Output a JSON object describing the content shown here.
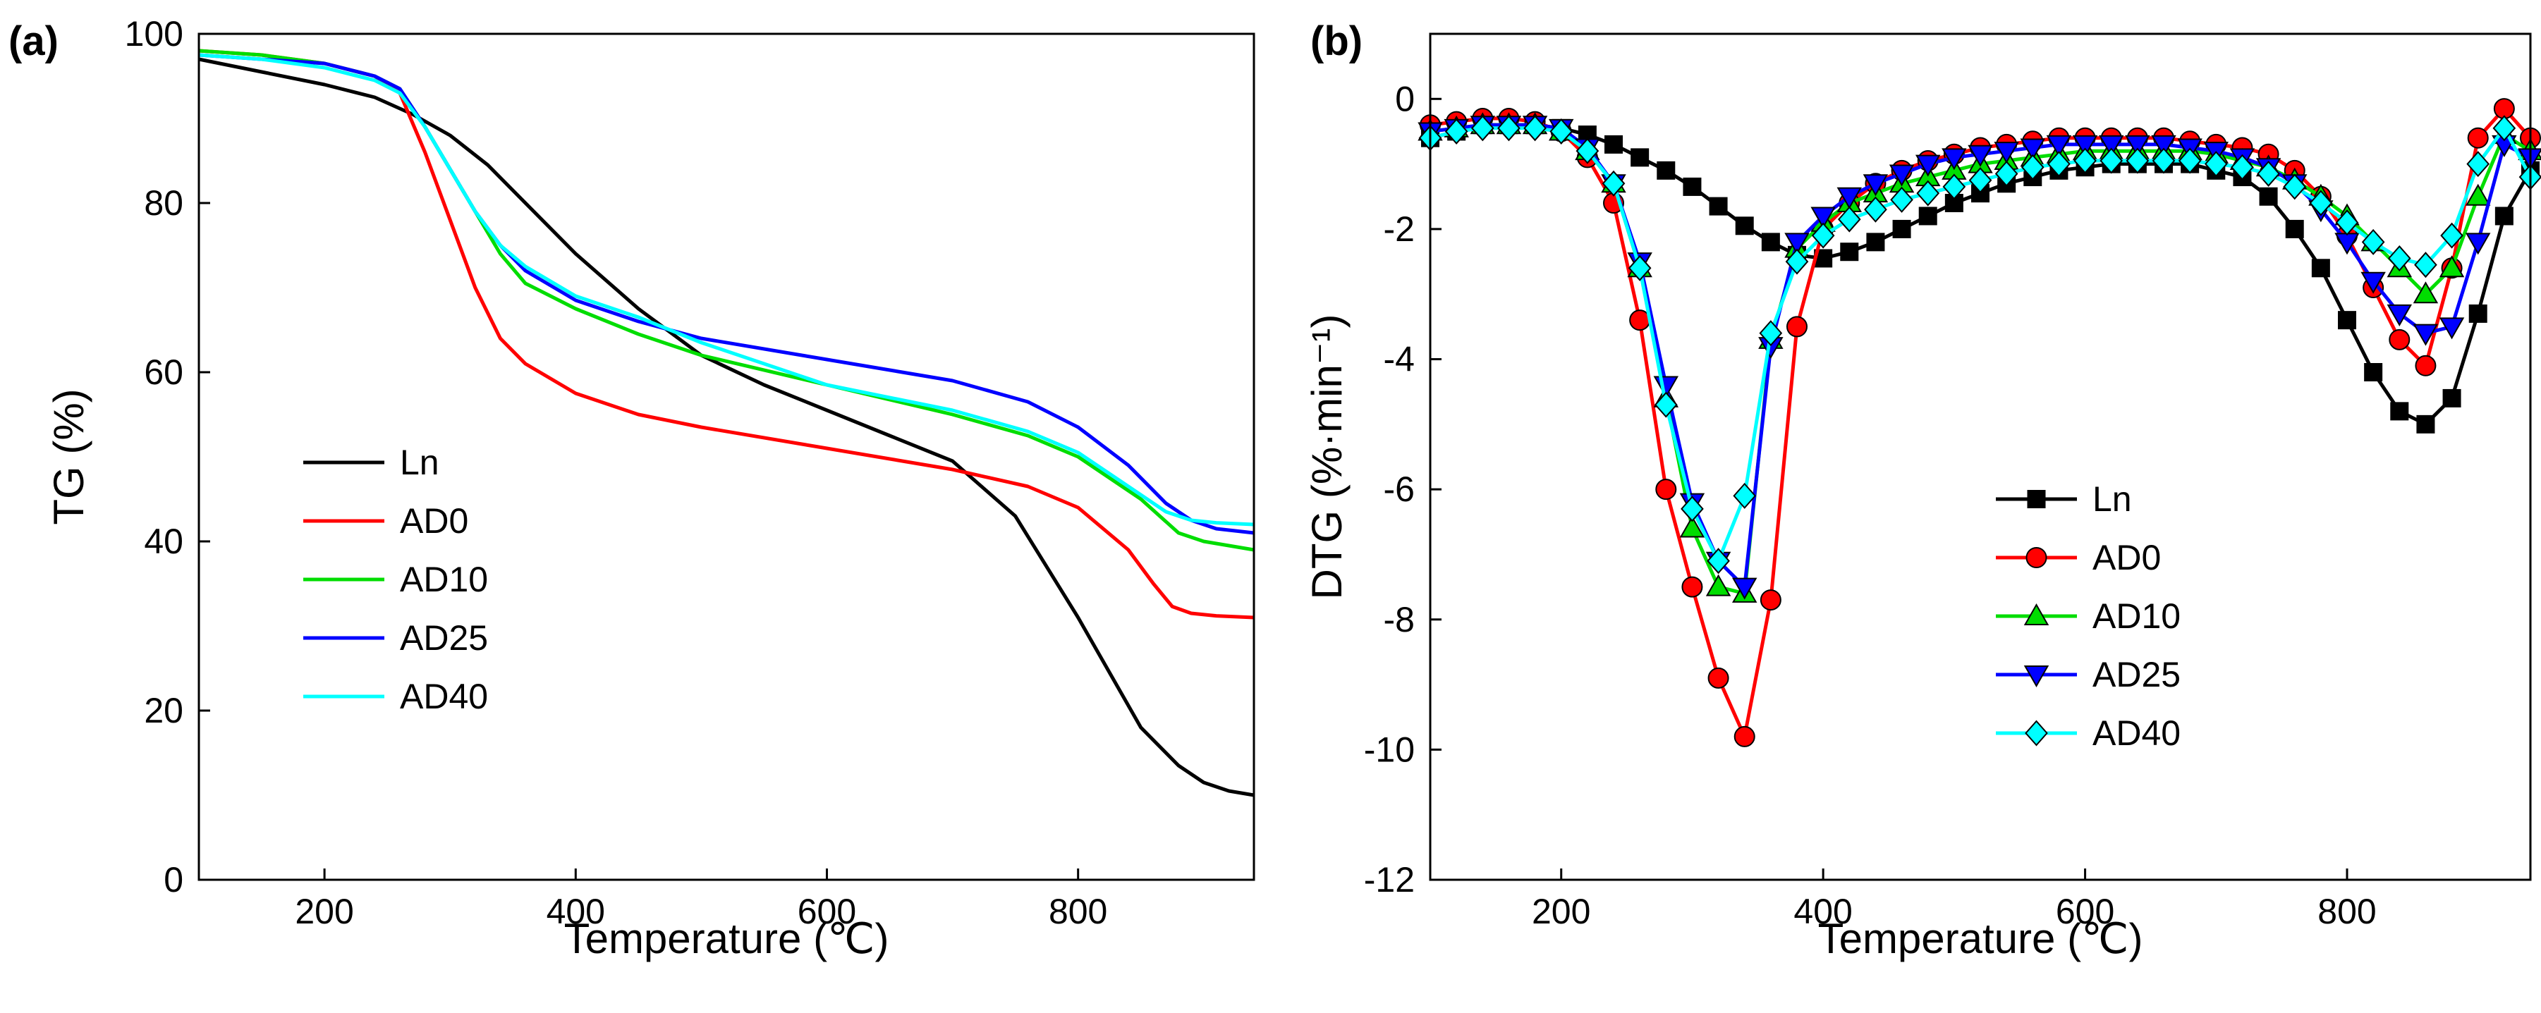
{
  "chart_data": [
    {
      "panel_label": "(a)",
      "type": "line",
      "xlabel": "Temperature (℃)",
      "ylabel": "TG (%)",
      "xlim": [
        100,
        940
      ],
      "ylim": [
        0,
        100
      ],
      "xticks": [
        200,
        400,
        600,
        800
      ],
      "yticks": [
        0,
        20,
        40,
        60,
        80,
        100
      ],
      "legend_position": "lower-left",
      "series": [
        {
          "name": "Ln",
          "color": "#000000",
          "x": [
            100,
            150,
            200,
            240,
            270,
            300,
            330,
            360,
            400,
            450,
            500,
            550,
            600,
            650,
            700,
            750,
            800,
            850,
            880,
            900,
            920,
            940
          ],
          "y": [
            97,
            95.5,
            94,
            92.5,
            90.5,
            88,
            84.5,
            80,
            74,
            67.5,
            62,
            58.5,
            55.5,
            52.5,
            49.5,
            43,
            31,
            18,
            13.5,
            11.5,
            10.5,
            10
          ]
        },
        {
          "name": "AD0",
          "color": "#ff0000",
          "x": [
            100,
            150,
            200,
            240,
            260,
            280,
            300,
            320,
            340,
            350,
            360,
            400,
            450,
            500,
            600,
            700,
            760,
            800,
            840,
            860,
            875,
            890,
            910,
            940
          ],
          "y": [
            98,
            97.5,
            96.5,
            95,
            93,
            86,
            78,
            70,
            64,
            62.5,
            61,
            57.5,
            55,
            53.5,
            51,
            48.5,
            46.5,
            44,
            39,
            35,
            32.3,
            31.5,
            31.2,
            31
          ]
        },
        {
          "name": "AD10",
          "color": "#00dd00",
          "x": [
            100,
            150,
            200,
            240,
            260,
            280,
            300,
            320,
            340,
            360,
            400,
            450,
            500,
            600,
            700,
            760,
            800,
            850,
            880,
            900,
            940
          ],
          "y": [
            98,
            97.5,
            96.5,
            95,
            93.5,
            89,
            84,
            79,
            74,
            70.5,
            67.5,
            64.5,
            62,
            58.5,
            55,
            52.5,
            50,
            45,
            41,
            40,
            39
          ]
        },
        {
          "name": "AD25",
          "color": "#0000ff",
          "x": [
            100,
            150,
            200,
            240,
            260,
            280,
            300,
            320,
            340,
            360,
            400,
            450,
            500,
            600,
            700,
            760,
            800,
            840,
            870,
            890,
            910,
            940
          ],
          "y": [
            97.5,
            97,
            96.5,
            95,
            93.5,
            89,
            84,
            79,
            75,
            72,
            68.5,
            66,
            64,
            61.5,
            59,
            56.5,
            53.5,
            49,
            44.5,
            42.5,
            41.5,
            41
          ]
        },
        {
          "name": "AD40",
          "color": "#00ffff",
          "x": [
            100,
            150,
            200,
            240,
            260,
            280,
            300,
            320,
            340,
            360,
            400,
            450,
            500,
            600,
            700,
            760,
            800,
            840,
            870,
            890,
            910,
            940
          ],
          "y": [
            97.5,
            97,
            96,
            94.5,
            93,
            89,
            84,
            79,
            75,
            72.5,
            69,
            66.5,
            63.5,
            58.5,
            55.5,
            53,
            50.5,
            46.5,
            43.5,
            42.5,
            42.2,
            42
          ]
        }
      ]
    },
    {
      "panel_label": "(b)",
      "type": "line",
      "xlabel": "Temperature (℃)",
      "ylabel": "DTG (%·min⁻¹)",
      "xlim": [
        100,
        940
      ],
      "ylim": [
        -12,
        1
      ],
      "xticks": [
        200,
        400,
        600,
        800
      ],
      "yticks": [
        0,
        -2,
        -4,
        -6,
        -8,
        -10,
        -12
      ],
      "legend_position": "lower-center",
      "series": [
        {
          "name": "Ln",
          "color": "#000000",
          "marker": "square",
          "x": [
            100,
            120,
            140,
            160,
            180,
            200,
            220,
            240,
            260,
            280,
            300,
            320,
            340,
            360,
            380,
            400,
            420,
            440,
            460,
            480,
            500,
            520,
            540,
            560,
            580,
            600,
            620,
            640,
            660,
            680,
            700,
            720,
            740,
            760,
            780,
            800,
            820,
            840,
            860,
            880,
            900,
            920,
            940
          ],
          "y": [
            -0.6,
            -0.5,
            -0.4,
            -0.4,
            -0.4,
            -0.45,
            -0.55,
            -0.7,
            -0.9,
            -1.1,
            -1.35,
            -1.65,
            -1.95,
            -2.2,
            -2.4,
            -2.45,
            -2.35,
            -2.2,
            -2.0,
            -1.8,
            -1.6,
            -1.45,
            -1.3,
            -1.2,
            -1.1,
            -1.05,
            -1.0,
            -1.0,
            -1.0,
            -1.0,
            -1.1,
            -1.2,
            -1.5,
            -2.0,
            -2.6,
            -3.4,
            -4.2,
            -4.8,
            -5.0,
            -4.6,
            -3.3,
            -1.8,
            -1.1
          ]
        },
        {
          "name": "AD0",
          "color": "#ff0000",
          "marker": "circle",
          "x": [
            100,
            120,
            140,
            160,
            180,
            200,
            220,
            240,
            260,
            280,
            300,
            320,
            340,
            360,
            380,
            400,
            420,
            440,
            460,
            480,
            500,
            520,
            540,
            560,
            580,
            600,
            620,
            640,
            660,
            680,
            700,
            720,
            740,
            760,
            780,
            800,
            820,
            840,
            860,
            880,
            900,
            920,
            940
          ],
          "y": [
            -0.4,
            -0.35,
            -0.3,
            -0.3,
            -0.35,
            -0.5,
            -0.9,
            -1.6,
            -3.4,
            -6.0,
            -7.5,
            -8.9,
            -9.8,
            -7.7,
            -3.5,
            -2.0,
            -1.6,
            -1.3,
            -1.1,
            -0.95,
            -0.85,
            -0.75,
            -0.7,
            -0.65,
            -0.6,
            -0.6,
            -0.6,
            -0.6,
            -0.6,
            -0.65,
            -0.7,
            -0.75,
            -0.85,
            -1.1,
            -1.5,
            -2.1,
            -2.9,
            -3.7,
            -4.1,
            -2.6,
            -0.6,
            -0.15,
            -0.6
          ]
        },
        {
          "name": "AD10",
          "color": "#00dd00",
          "marker": "triangle-up",
          "x": [
            100,
            120,
            140,
            160,
            180,
            200,
            220,
            240,
            260,
            280,
            300,
            320,
            340,
            360,
            380,
            400,
            420,
            440,
            460,
            480,
            500,
            520,
            540,
            560,
            580,
            600,
            620,
            640,
            660,
            680,
            700,
            720,
            740,
            760,
            780,
            800,
            820,
            840,
            860,
            880,
            900,
            920,
            940
          ],
          "y": [
            -0.5,
            -0.45,
            -0.4,
            -0.4,
            -0.4,
            -0.5,
            -0.8,
            -1.3,
            -2.6,
            -4.6,
            -6.6,
            -7.5,
            -7.6,
            -3.7,
            -2.3,
            -1.9,
            -1.6,
            -1.45,
            -1.3,
            -1.2,
            -1.1,
            -1.0,
            -0.95,
            -0.9,
            -0.85,
            -0.8,
            -0.8,
            -0.8,
            -0.8,
            -0.8,
            -0.85,
            -0.95,
            -1.05,
            -1.25,
            -1.5,
            -1.8,
            -2.2,
            -2.6,
            -3.0,
            -2.6,
            -1.5,
            -0.55,
            -0.8
          ]
        },
        {
          "name": "AD25",
          "color": "#0000ff",
          "marker": "triangle-down",
          "x": [
            100,
            120,
            140,
            160,
            180,
            200,
            220,
            240,
            260,
            280,
            300,
            320,
            340,
            360,
            380,
            400,
            420,
            440,
            460,
            480,
            500,
            520,
            540,
            560,
            580,
            600,
            620,
            640,
            660,
            680,
            700,
            720,
            740,
            760,
            780,
            800,
            820,
            840,
            860,
            880,
            900,
            920,
            940
          ],
          "y": [
            -0.5,
            -0.45,
            -0.4,
            -0.4,
            -0.4,
            -0.45,
            -0.75,
            -1.3,
            -2.5,
            -4.4,
            -6.2,
            -7.1,
            -7.5,
            -3.8,
            -2.2,
            -1.8,
            -1.5,
            -1.3,
            -1.15,
            -1.0,
            -0.9,
            -0.85,
            -0.8,
            -0.75,
            -0.7,
            -0.7,
            -0.7,
            -0.7,
            -0.7,
            -0.75,
            -0.8,
            -0.9,
            -1.05,
            -1.3,
            -1.7,
            -2.2,
            -2.8,
            -3.3,
            -3.6,
            -3.5,
            -2.2,
            -0.7,
            -0.9
          ]
        },
        {
          "name": "AD40",
          "color": "#00ffff",
          "marker": "diamond",
          "x": [
            100,
            120,
            140,
            160,
            180,
            200,
            220,
            240,
            260,
            280,
            300,
            320,
            340,
            360,
            380,
            400,
            420,
            440,
            460,
            480,
            500,
            520,
            540,
            560,
            580,
            600,
            620,
            640,
            660,
            680,
            700,
            720,
            740,
            760,
            780,
            800,
            820,
            840,
            860,
            880,
            900,
            920,
            940
          ],
          "y": [
            -0.6,
            -0.5,
            -0.45,
            -0.45,
            -0.45,
            -0.5,
            -0.8,
            -1.3,
            -2.6,
            -4.7,
            -6.3,
            -7.1,
            -6.1,
            -3.6,
            -2.5,
            -2.1,
            -1.85,
            -1.7,
            -1.55,
            -1.45,
            -1.35,
            -1.25,
            -1.15,
            -1.05,
            -1.0,
            -0.95,
            -0.95,
            -0.95,
            -0.95,
            -0.95,
            -1.0,
            -1.05,
            -1.15,
            -1.35,
            -1.6,
            -1.9,
            -2.2,
            -2.45,
            -2.55,
            -2.1,
            -1.0,
            -0.45,
            -1.2
          ]
        }
      ]
    }
  ]
}
